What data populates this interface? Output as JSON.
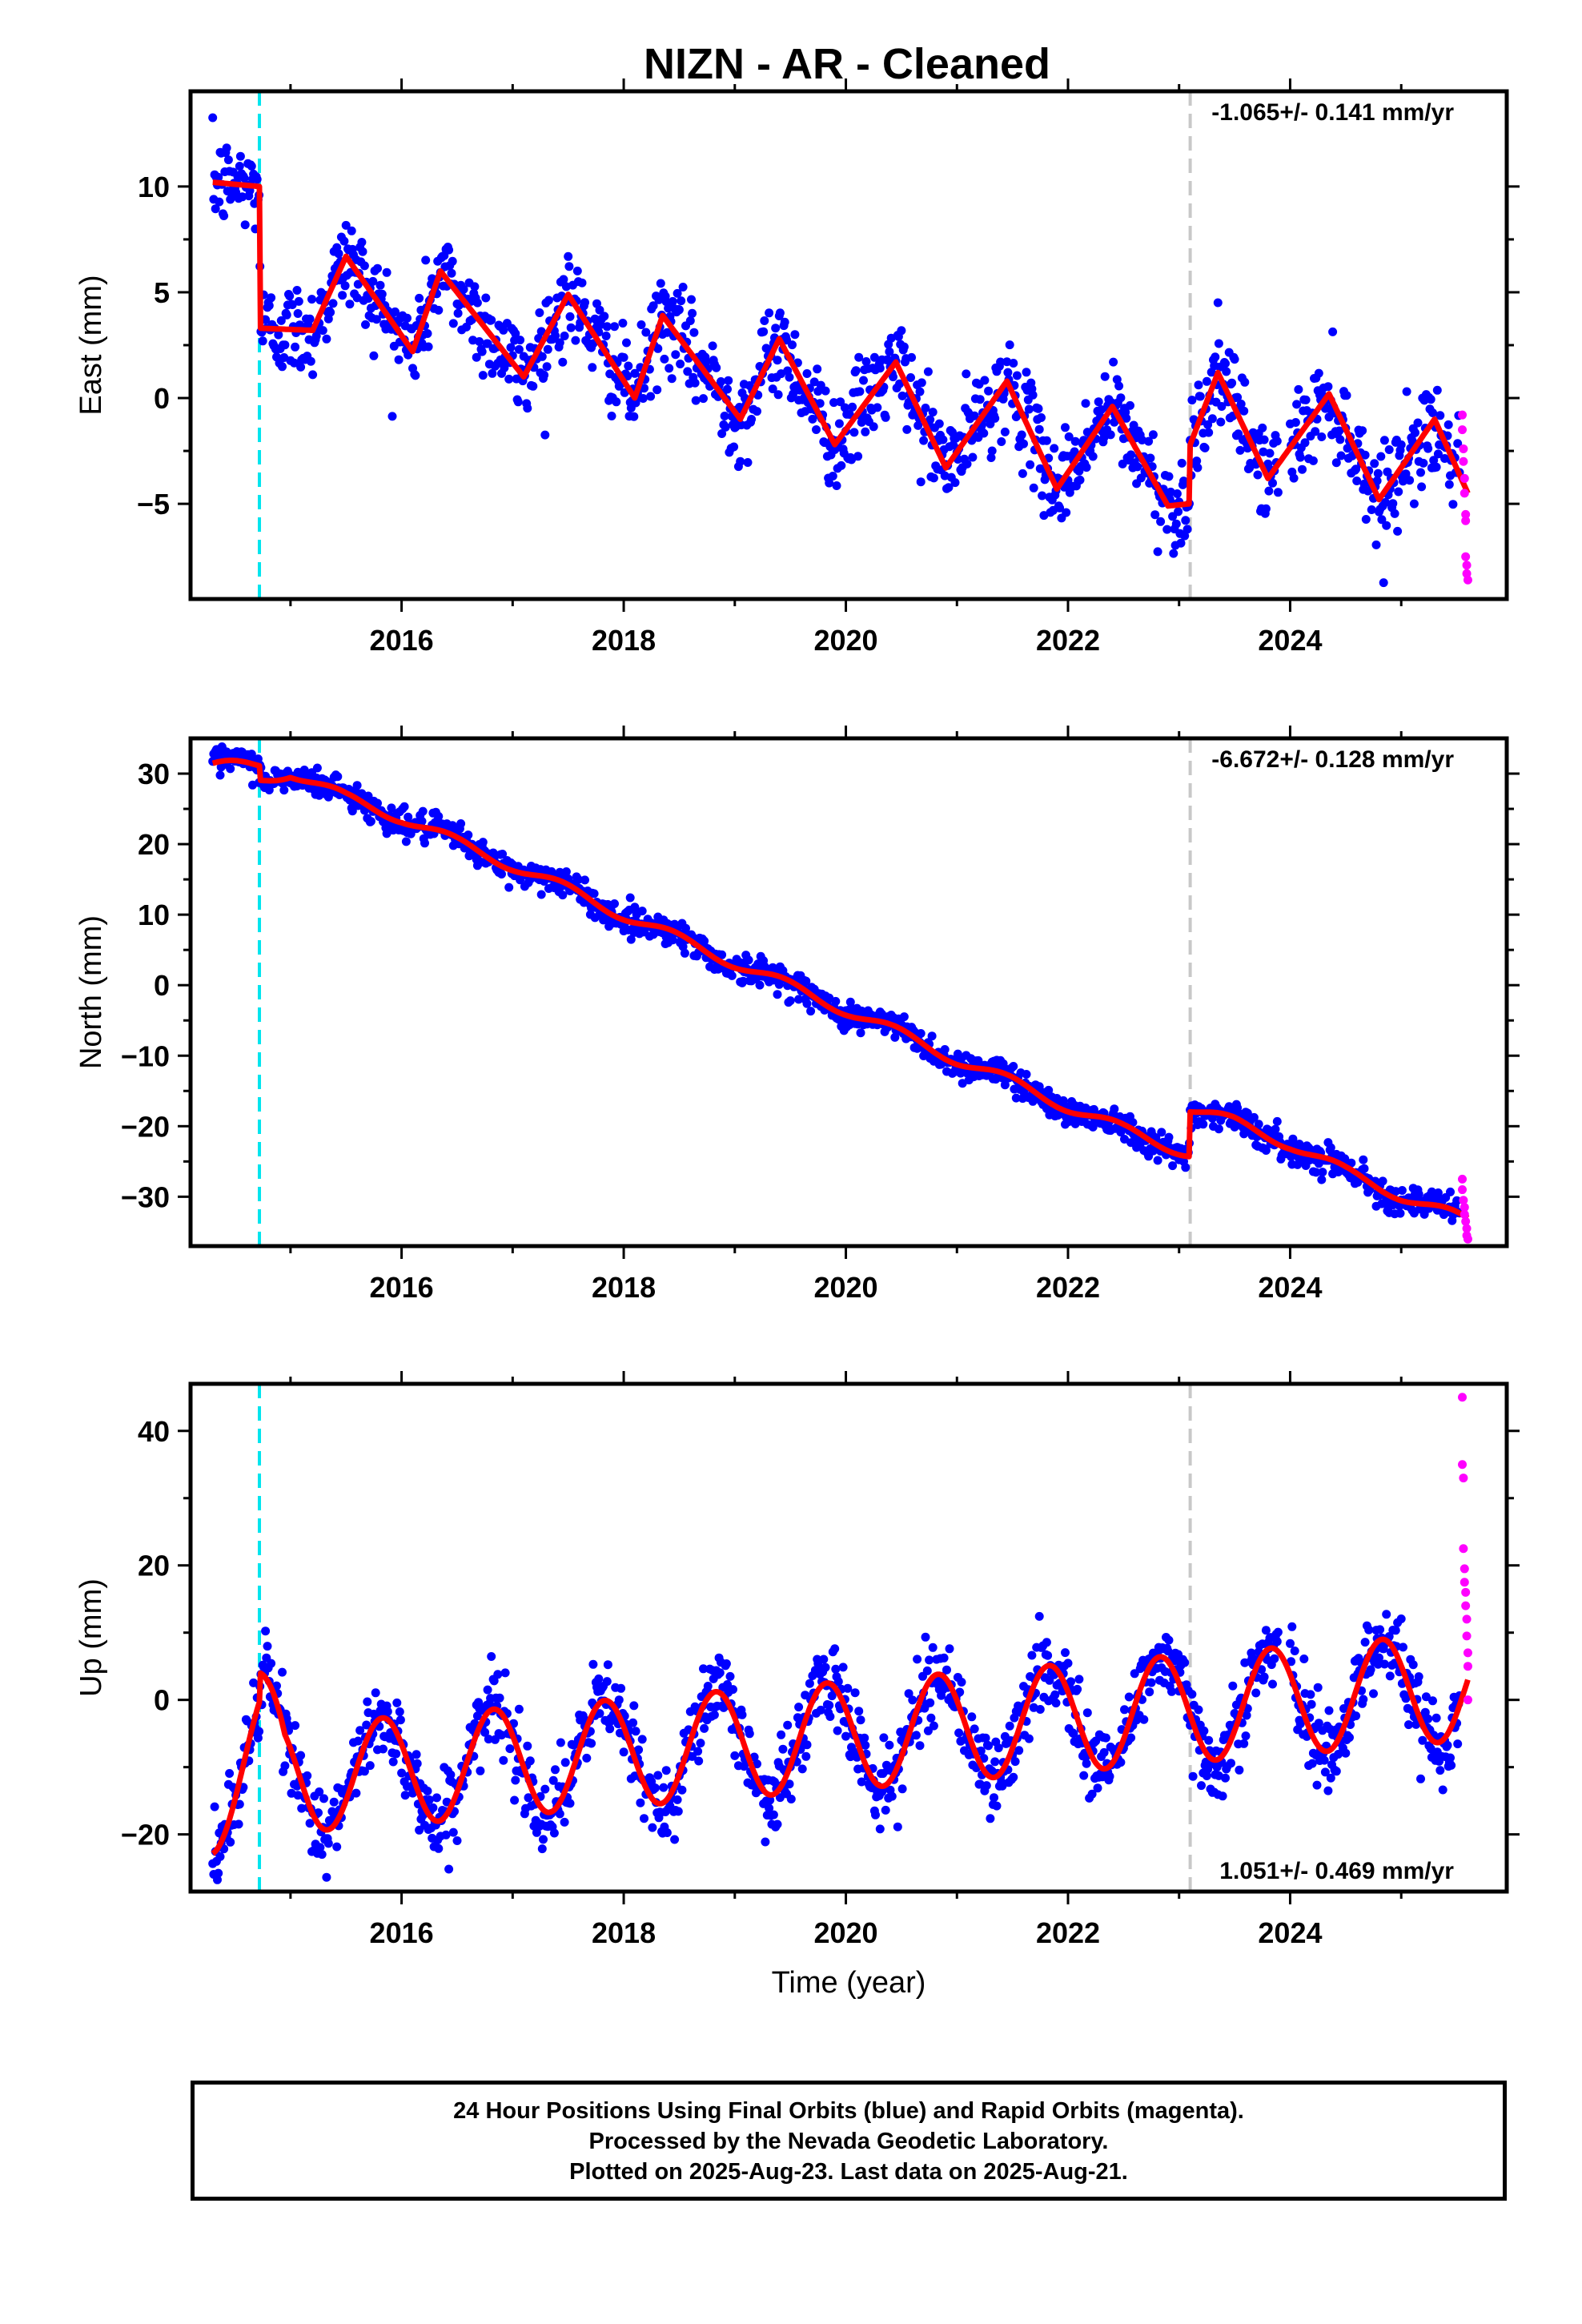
{
  "title": "NIZN  - AR - Cleaned",
  "xlabel": "Time (year)",
  "caption": {
    "line1": "24 Hour Positions Using Final Orbits (blue) and Rapid Orbits (magenta).",
    "line2": "Processed by the Nevada Geodetic Laboratory.",
    "line3": "Plotted on 2025-Aug-23. Last data on 2025-Aug-21."
  },
  "colors": {
    "final": "#0000ff",
    "rapid": "#ff00ff",
    "model": "#ff0000",
    "equipment_change": "#00e5ee",
    "event": "#c8c8c8"
  },
  "chart_data": [
    {
      "type": "scatter",
      "component": "east",
      "ylabel": "East (mm)",
      "rate": "-1.065+/- 0.141 mm/yr",
      "xlim": [
        2014.1,
        2025.95
      ],
      "ylim": [
        -9.5,
        14.5
      ],
      "xticks": [
        2016,
        2018,
        2020,
        2022,
        2024
      ],
      "yticks": [
        -5,
        0,
        5,
        10
      ],
      "vlines": [
        {
          "x": 2014.72,
          "kind": "equipment_change"
        },
        {
          "x": 2023.1,
          "kind": "event"
        }
      ],
      "model": {
        "trend": [
          [
            2014.3,
            10.2
          ],
          [
            2014.72,
            10.0
          ],
          [
            2014.73,
            3.3
          ],
          [
            2015.2,
            3.2
          ],
          [
            2015.5,
            6.7
          ],
          [
            2016.1,
            2.2
          ],
          [
            2016.35,
            6.0
          ],
          [
            2017.1,
            1.0
          ],
          [
            2017.5,
            4.9
          ],
          [
            2018.1,
            0.0
          ],
          [
            2018.35,
            3.9
          ],
          [
            2019.05,
            -1.0
          ],
          [
            2019.4,
            2.8
          ],
          [
            2019.9,
            -2.2
          ],
          [
            2020.45,
            1.7
          ],
          [
            2020.9,
            -3.3
          ],
          [
            2021.45,
            0.8
          ],
          [
            2021.9,
            -4.3
          ],
          [
            2022.4,
            -0.4
          ],
          [
            2022.9,
            -5.1
          ],
          [
            2023.09,
            -5.0
          ],
          [
            2023.1,
            -2.2
          ],
          [
            2023.35,
            1.2
          ],
          [
            2023.8,
            -3.8
          ],
          [
            2024.35,
            0.2
          ],
          [
            2024.8,
            -4.8
          ],
          [
            2025.3,
            -1.0
          ],
          [
            2025.6,
            -4.5
          ]
        ],
        "amp": 0,
        "phase": 0
      },
      "scatter_sd": 1.1,
      "rapid": [
        [
          2025.55,
          -0.8
        ],
        [
          2025.55,
          -1.5
        ],
        [
          2025.56,
          -2.4
        ],
        [
          2025.56,
          -3.0
        ],
        [
          2025.57,
          -3.8
        ],
        [
          2025.57,
          -4.5
        ],
        [
          2025.58,
          -5.5
        ],
        [
          2025.58,
          -5.8
        ],
        [
          2025.58,
          -7.5
        ],
        [
          2025.59,
          -7.9
        ],
        [
          2025.59,
          -8.3
        ],
        [
          2025.6,
          -8.6
        ]
      ]
    },
    {
      "type": "scatter",
      "component": "north",
      "ylabel": "North (mm)",
      "rate": "-6.672+/- 0.128 mm/yr",
      "xlim": [
        2014.1,
        2025.95
      ],
      "ylim": [
        -37,
        35
      ],
      "xticks": [
        2016,
        2018,
        2020,
        2022,
        2024
      ],
      "yticks": [
        -30,
        -20,
        -10,
        0,
        10,
        20,
        30
      ],
      "vlines": [
        {
          "x": 2014.72,
          "kind": "equipment_change"
        },
        {
          "x": 2023.1,
          "kind": "event"
        }
      ],
      "model": {
        "trend": [
          [
            2014.3,
            31.0
          ],
          [
            2014.72,
            31.2
          ],
          [
            2014.73,
            29.2
          ],
          [
            2015.0,
            30.2
          ],
          [
            2015.5,
            26.5
          ],
          [
            2016.0,
            23.8
          ],
          [
            2016.5,
            20.2
          ],
          [
            2017.0,
            17.0
          ],
          [
            2017.5,
            13.5
          ],
          [
            2018.0,
            10.0
          ],
          [
            2018.5,
            6.5
          ],
          [
            2019.0,
            3.2
          ],
          [
            2019.5,
            -0.2
          ],
          [
            2020.0,
            -3.5
          ],
          [
            2020.5,
            -7.0
          ],
          [
            2021.0,
            -10.5
          ],
          [
            2021.5,
            -13.8
          ],
          [
            2022.0,
            -17.2
          ],
          [
            2022.5,
            -20.5
          ],
          [
            2023.09,
            -23.8
          ],
          [
            2023.1,
            -17.5
          ],
          [
            2023.5,
            -19.5
          ],
          [
            2024.0,
            -22.5
          ],
          [
            2024.5,
            -26.5
          ],
          [
            2025.0,
            -29.8
          ],
          [
            2025.6,
            -33.5
          ]
        ],
        "amp": 0.8,
        "phase": 0.2
      },
      "scatter_sd": 1.0,
      "rapid": [
        [
          2025.55,
          -27.5
        ],
        [
          2025.55,
          -29.0
        ],
        [
          2025.56,
          -30.5
        ],
        [
          2025.57,
          -31.5
        ],
        [
          2025.57,
          -32.5
        ],
        [
          2025.58,
          -33.5
        ],
        [
          2025.59,
          -34.5
        ],
        [
          2025.59,
          -35.5
        ],
        [
          2025.6,
          -36.0
        ]
      ]
    },
    {
      "type": "scatter",
      "component": "up",
      "ylabel": "Up (mm)",
      "rate": "1.051+/- 0.469 mm/yr",
      "xlim": [
        2014.1,
        2025.95
      ],
      "ylim": [
        -28.5,
        47
      ],
      "xticks": [
        2016,
        2018,
        2020,
        2022,
        2024
      ],
      "yticks": [
        -20,
        0,
        20,
        40
      ],
      "vlines": [
        {
          "x": 2014.72,
          "kind": "equipment_change"
        },
        {
          "x": 2023.1,
          "kind": "event"
        }
      ],
      "model": {
        "trend": [
          [
            2014.3,
            -15.0
          ],
          [
            2014.72,
            -6.5
          ],
          [
            2014.73,
            -2.5
          ],
          [
            2014.95,
            -11.0
          ],
          [
            2015.2,
            -11.5
          ],
          [
            2025.6,
            2.0
          ]
        ],
        "amp": 8.0,
        "phase": 0.58
      },
      "scatter_sd": 3.0,
      "rapid": [
        [
          2025.55,
          45.0
        ],
        [
          2025.55,
          35.0
        ],
        [
          2025.56,
          33.0
        ],
        [
          2025.56,
          22.5
        ],
        [
          2025.57,
          19.5
        ],
        [
          2025.57,
          17.5
        ],
        [
          2025.58,
          16.0
        ],
        [
          2025.58,
          14.0
        ],
        [
          2025.59,
          12.0
        ],
        [
          2025.59,
          9.5
        ],
        [
          2025.6,
          7.0
        ],
        [
          2025.6,
          5.0
        ],
        [
          2025.6,
          0.0
        ]
      ]
    }
  ]
}
